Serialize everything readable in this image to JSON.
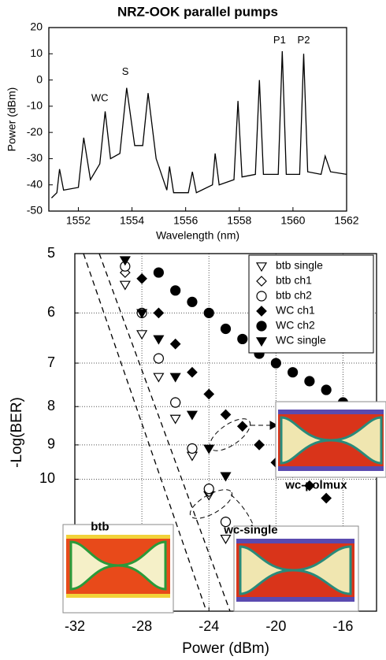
{
  "chart_data": [
    {
      "type": "line",
      "title": "NRZ-OOK parallel pumps",
      "x_label": "Wavelength (nm)",
      "y_label": "Power (dBm)",
      "x": [
        1551.0,
        1551.2,
        1551.3,
        1551.45,
        1552.0,
        1552.2,
        1552.45,
        1552.8,
        1553.0,
        1553.2,
        1553.55,
        1553.8,
        1554.1,
        1554.4,
        1554.6,
        1554.9,
        1555.3,
        1555.4,
        1555.55,
        1556.1,
        1556.25,
        1556.4,
        1557.0,
        1557.1,
        1557.25,
        1557.8,
        1557.95,
        1558.1,
        1558.6,
        1558.75,
        1558.9,
        1559.45,
        1559.6,
        1559.75,
        1560.25,
        1560.4,
        1560.55,
        1561.05,
        1561.2,
        1561.4,
        1562.0
      ],
      "values": [
        -45,
        -43,
        -34,
        -42,
        -41,
        -22,
        -38,
        -32,
        -12,
        -30,
        -28,
        -3,
        -25,
        -25,
        -5,
        -30,
        -42,
        -33,
        -43,
        -43,
        -35,
        -43,
        -40,
        -28,
        -40,
        -38,
        -8,
        -37,
        -36,
        0,
        -36,
        -36,
        11,
        -36,
        -36,
        10,
        -35,
        -36,
        -29,
        -35,
        -36
      ],
      "color": "#000000",
      "xlim": [
        1550.9,
        1562
      ],
      "xticks": [
        1552,
        1554,
        1556,
        1558,
        1560,
        1562
      ],
      "ylim": [
        -50,
        20
      ],
      "yticks": [
        -50,
        -40,
        -30,
        -20,
        -10,
        0,
        10,
        20
      ],
      "grid": false,
      "annotations": [
        {
          "text": "WC",
          "x": 1552.8,
          "y": -7
        },
        {
          "text": "S",
          "x": 1553.75,
          "y": 3
        },
        {
          "text": "P1",
          "x": 1559.5,
          "y": 15
        },
        {
          "text": "P2",
          "x": 1560.4,
          "y": 15
        }
      ]
    },
    {
      "type": "scatter",
      "x_label": "Power (dBm)",
      "y_label": "-Log(BER)",
      "xlim": [
        -32,
        -14
      ],
      "xticks": [
        -32,
        -28,
        -24,
        -20,
        -16
      ],
      "ylim": [
        5,
        15
      ],
      "yticks": [
        5,
        6,
        7,
        8,
        9,
        10
      ],
      "log_y": true,
      "invert_y": true,
      "grid": true,
      "legend": "upper right",
      "annotations": [
        {
          "text": "btb",
          "x": -30.5,
          "y": 11.6
        },
        {
          "text": "wc-single",
          "x": -21.5,
          "y": 11.7
        },
        {
          "text": "wc-polmux",
          "x": -17.6,
          "y": 10.2
        }
      ],
      "series": [
        {
          "name": "btb single",
          "marker": "triangle-down",
          "filled": false,
          "color": "#000000",
          "x": [
            -29,
            -28,
            -27,
            -26,
            -25,
            -24,
            -23
          ],
          "values": [
            5.5,
            6.4,
            7.3,
            8.3,
            9.3,
            10.5,
            12.0
          ]
        },
        {
          "name": "btb ch1",
          "marker": "diamond",
          "filled": false,
          "color": "#000000",
          "x": [
            -29,
            -28,
            -27,
            -26,
            -25,
            -24,
            -23
          ],
          "values": [
            5.3,
            6.0,
            6.9,
            7.9,
            9.1,
            10.4,
            11.4
          ]
        },
        {
          "name": "btb ch2",
          "marker": "circle",
          "filled": false,
          "color": "#000000",
          "x": [
            -29,
            -28,
            -27,
            -26,
            -25,
            -24,
            -23
          ],
          "values": [
            5.2,
            6.0,
            6.9,
            7.9,
            9.1,
            10.3,
            11.4
          ]
        },
        {
          "name": "WC ch1",
          "marker": "diamond",
          "filled": true,
          "color": "#000000",
          "x": [
            -28,
            -27,
            -26,
            -25,
            -24,
            -23,
            -22,
            -21,
            -20,
            -19,
            -18,
            -17
          ],
          "values": [
            5.4,
            6.0,
            6.6,
            7.2,
            7.7,
            8.2,
            8.5,
            9.0,
            9.5,
            9.8,
            10.2,
            10.6
          ]
        },
        {
          "name": "WC ch2",
          "marker": "circle",
          "filled": true,
          "color": "#000000",
          "x": [
            -27,
            -26,
            -25,
            -24,
            -23,
            -22,
            -21,
            -20,
            -19,
            -18,
            -17,
            -16
          ],
          "values": [
            5.3,
            5.6,
            5.8,
            6.0,
            6.3,
            6.5,
            6.8,
            7.0,
            7.2,
            7.4,
            7.6,
            7.9
          ]
        },
        {
          "name": "WC single",
          "marker": "triangle-down",
          "filled": true,
          "color": "#000000",
          "x": [
            -29,
            -28,
            -27,
            -26,
            -25,
            -24,
            -23
          ],
          "values": [
            5.1,
            6.0,
            6.5,
            7.3,
            8.2,
            9.1,
            9.9
          ]
        }
      ]
    }
  ]
}
